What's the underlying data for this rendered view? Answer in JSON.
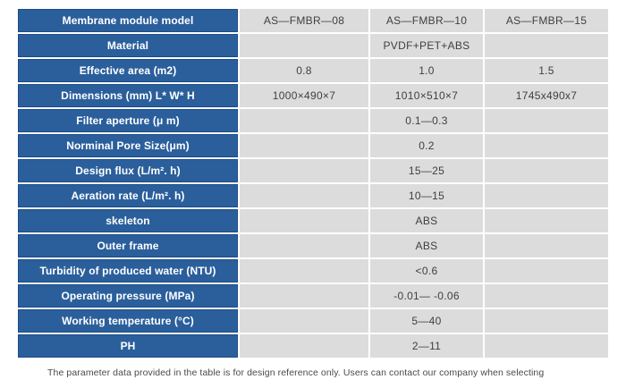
{
  "colors": {
    "header_blue": "#2b5f9c",
    "header_border": "#1d4c85",
    "cell_gray": "#dcdcdc",
    "cell_text": "#3f3f3f",
    "footer_text": "#4a4a4a"
  },
  "table": {
    "rows": [
      {
        "label": "Membrane module model",
        "values": [
          "AS—FMBR—08",
          "AS—FMBR—10",
          "AS—FMBR—15"
        ]
      },
      {
        "label": "Material",
        "values": [
          "",
          "PVDF+PET+ABS",
          ""
        ]
      },
      {
        "label": "Effective area (m2)",
        "values": [
          "0.8",
          "1.0",
          "1.5"
        ]
      },
      {
        "label": "Dimensions (mm) L* W* H",
        "values": [
          "1000×490×7",
          "1010×510×7",
          "1745x490x7"
        ]
      },
      {
        "label": "Filter aperture (μ m)",
        "values": [
          "",
          "0.1—0.3",
          ""
        ]
      },
      {
        "label": "Norminal Pore Size(μm)",
        "values": [
          "",
          "0.2",
          ""
        ]
      },
      {
        "label": "Design flux (L/m². h)",
        "values": [
          "",
          "15—25",
          ""
        ]
      },
      {
        "label": "Aeration rate (L/m². h)",
        "values": [
          "",
          "10—15",
          ""
        ]
      },
      {
        "label": "skeleton",
        "values": [
          "",
          "ABS",
          ""
        ]
      },
      {
        "label": "Outer frame",
        "values": [
          "",
          "ABS",
          ""
        ]
      },
      {
        "label": "Turbidity of produced water (NTU)",
        "values": [
          "",
          "<0.6",
          ""
        ]
      },
      {
        "label": "Operating pressure (MPa)",
        "values": [
          "",
          "-0.01— -0.06",
          ""
        ]
      },
      {
        "label": "Working temperature (°C)",
        "values": [
          "",
          "5—40",
          ""
        ]
      },
      {
        "label": "PH",
        "values": [
          "",
          "2—11",
          ""
        ]
      }
    ]
  },
  "footer": {
    "note": "The parameter data provided in the table is for design reference only. Users can contact our company when selecting"
  }
}
